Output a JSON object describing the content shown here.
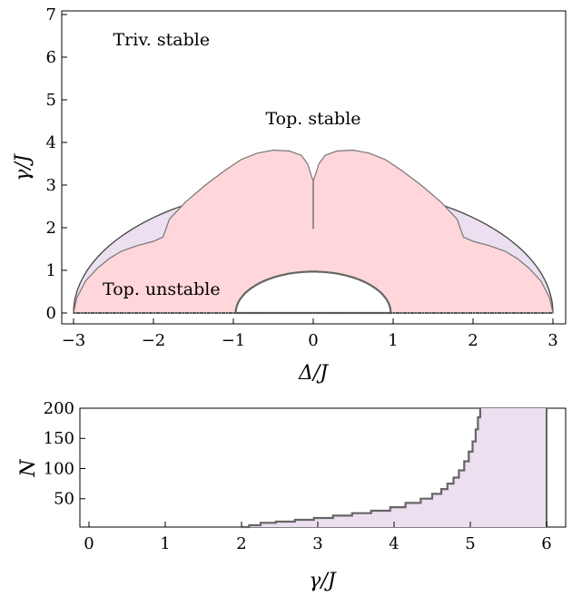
{
  "chart_data": [
    {
      "type": "area",
      "xlabel": "Δ/J",
      "ylabel": "γ/J",
      "xlim": [
        -3.2,
        3.2
      ],
      "ylim": [
        -0.15,
        7.0
      ],
      "xticks": [
        -3,
        -2,
        -1,
        0,
        1,
        2,
        3
      ],
      "xtick_labels": [
        "−3",
        "−2",
        "−1",
        "0",
        "1",
        "2",
        "3"
      ],
      "yticks": [
        0,
        1,
        2,
        3,
        4,
        5,
        6,
        7
      ],
      "ytick_labels": [
        "0",
        "1",
        "2",
        "3",
        "4",
        "5",
        "6",
        "7"
      ],
      "grid": false,
      "regions": [
        {
          "label": "Triv. stable",
          "color": "#ffffff",
          "annotation_at": [
            -1.9,
            6.4
          ]
        },
        {
          "label": "Top. stable",
          "color": "#ebdff0",
          "outer_boundary": "semicircle radius 3 centered at Δ=0",
          "annotation_at": [
            0,
            4.55
          ]
        },
        {
          "label": "Top. unstable",
          "color": "#ffd6d9",
          "annotation_at": [
            -1.9,
            0.55
          ],
          "upper_boundary": [
            [
              -3.0,
              0.0
            ],
            [
              -2.96,
              0.35
            ],
            [
              -2.85,
              0.75
            ],
            [
              -2.7,
              1.05
            ],
            [
              -2.55,
              1.28
            ],
            [
              -2.4,
              1.45
            ],
            [
              -2.2,
              1.58
            ],
            [
              -2.0,
              1.68
            ],
            [
              -1.88,
              1.78
            ],
            [
              -1.8,
              2.2
            ],
            [
              -1.6,
              2.6
            ],
            [
              -1.35,
              3.0
            ],
            [
              -1.1,
              3.35
            ],
            [
              -0.9,
              3.6
            ],
            [
              -0.7,
              3.75
            ],
            [
              -0.5,
              3.82
            ],
            [
              -0.3,
              3.8
            ],
            [
              -0.15,
              3.7
            ],
            [
              -0.07,
              3.5
            ],
            [
              -0.02,
              3.2
            ],
            [
              0.0,
              3.1
            ],
            [
              0.02,
              3.2
            ],
            [
              0.07,
              3.5
            ],
            [
              0.15,
              3.7
            ],
            [
              0.3,
              3.8
            ],
            [
              0.5,
              3.82
            ],
            [
              0.7,
              3.75
            ],
            [
              0.9,
              3.6
            ],
            [
              1.1,
              3.35
            ],
            [
              1.35,
              3.0
            ],
            [
              1.6,
              2.6
            ],
            [
              1.8,
              2.2
            ],
            [
              1.88,
              1.78
            ],
            [
              2.0,
              1.68
            ],
            [
              2.2,
              1.58
            ],
            [
              2.4,
              1.45
            ],
            [
              2.55,
              1.28
            ],
            [
              2.7,
              1.05
            ],
            [
              2.85,
              0.75
            ],
            [
              2.96,
              0.35
            ],
            [
              3.0,
              0.0
            ]
          ],
          "inner_hole": "semicircle radius 0.97 centered at Δ=0"
        }
      ],
      "central_line": {
        "x": 0,
        "y_from": 1.97,
        "y_to": 3.1
      }
    },
    {
      "type": "area",
      "xlabel": "γ/J",
      "ylabel": "N",
      "xlim": [
        -0.15,
        6.35
      ],
      "ylim": [
        3,
        200
      ],
      "xticks": [
        0,
        1,
        2,
        3,
        4,
        5,
        6
      ],
      "xtick_labels": [
        "0",
        "1",
        "2",
        "3",
        "4",
        "5",
        "6"
      ],
      "yticks": [
        50,
        100,
        150,
        200
      ],
      "ytick_labels": [
        "50",
        "100",
        "150",
        "200"
      ],
      "grid": false,
      "color": "#ebdff0",
      "series": [
        {
          "boundary": [
            [
              2.0,
              3
            ],
            [
              2.1,
              6
            ],
            [
              2.25,
              10
            ],
            [
              2.45,
              12
            ],
            [
              2.7,
              15
            ],
            [
              2.95,
              18
            ],
            [
              3.2,
              22
            ],
            [
              3.45,
              26
            ],
            [
              3.7,
              30
            ],
            [
              3.95,
              36
            ],
            [
              4.15,
              43
            ],
            [
              4.35,
              50
            ],
            [
              4.5,
              58
            ],
            [
              4.62,
              66
            ],
            [
              4.7,
              75
            ],
            [
              4.78,
              85
            ],
            [
              4.85,
              97
            ],
            [
              4.92,
              112
            ],
            [
              4.98,
              128
            ],
            [
              5.03,
              145
            ],
            [
              5.07,
              165
            ],
            [
              5.1,
              185
            ],
            [
              5.13,
              200
            ]
          ],
          "right_edge": {
            "x": 6.0,
            "y_from": 3,
            "y_to": 200
          }
        }
      ]
    }
  ]
}
